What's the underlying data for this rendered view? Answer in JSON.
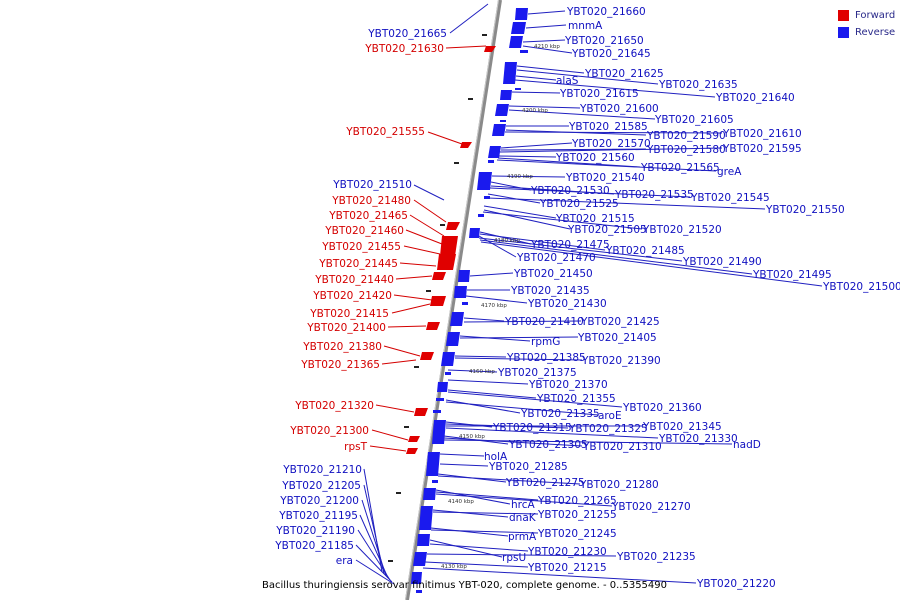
{
  "caption": "Bacillus thuringiensis serovar finitimus YBT-020, complete genome. - 0..5355490",
  "legend": [
    {
      "label": "Forward",
      "color": "#e00000"
    },
    {
      "label": "Reverse",
      "color": "#1a1aee"
    }
  ],
  "colors": {
    "forward": "#e00000",
    "reverse": "#1a1aee",
    "backbone": "#8a8a8a"
  },
  "ticks": [
    "4210 kbp",
    "4200 kbp",
    "4190 kbp",
    "4180 kbp",
    "4170 kbp",
    "4160 kbp",
    "4150 kbp",
    "4140 kbp",
    "4130 kbp"
  ],
  "forward_labels": [
    "YBT020_21630",
    "YBT020_21555",
    "YBT020_21480",
    "YBT020_21465",
    "YBT020_21460",
    "YBT020_21455",
    "YBT020_21445",
    "YBT020_21440",
    "YBT020_21420",
    "YBT020_21415",
    "YBT020_21400",
    "YBT020_21380",
    "YBT020_21365",
    "YBT020_21320",
    "YBT020_21300",
    "rpsT"
  ],
  "reverse_left_labels": [
    "YBT020_21665",
    "YBT020_21510",
    "YBT020_21210",
    "YBT020_21205",
    "YBT020_21200",
    "YBT020_21195",
    "YBT020_21190",
    "YBT020_21185",
    "era"
  ],
  "reverse_right_labels": [
    "YBT020_21660",
    "mnmA",
    "YBT020_21650",
    "YBT020_21645",
    "YBT020_21625",
    "YBT020_21635",
    "alaS",
    "YBT020_21640",
    "YBT020_21615",
    "YBT020_21600",
    "YBT020_21605",
    "YBT020_21585",
    "YBT020_21590",
    "YBT020_21610",
    "YBT020_21570",
    "YBT020_21580",
    "YBT020_21595",
    "YBT020_21560",
    "YBT020_21565",
    "greA",
    "YBT020_21540",
    "YBT020_21530",
    "YBT020_21535",
    "YBT020_21545",
    "YBT020_21525",
    "YBT020_21550",
    "YBT020_21515",
    "YBT020_21505",
    "YBT020_21520",
    "YBT020_21475",
    "YBT020_21485",
    "YBT020_21470",
    "YBT020_21490",
    "YBT020_21450",
    "YBT020_21495",
    "YBT020_21500",
    "YBT020_21435",
    "YBT020_21430",
    "YBT020_21410",
    "YBT020_21425",
    "rpmG",
    "YBT020_21405",
    "YBT020_21385",
    "YBT020_21390",
    "YBT020_21375",
    "YBT020_21370",
    "YBT020_21355",
    "YBT020_21360",
    "YBT020_21335",
    "aroE",
    "YBT020_21315",
    "YBT020_21325",
    "YBT020_21345",
    "YBT020_21330",
    "YBT020_21305",
    "YBT020_21310",
    "nadD",
    "holA",
    "YBT020_21285",
    "YBT020_21275",
    "YBT020_21280",
    "hrcA",
    "YBT020_21265",
    "YBT020_21270",
    "dnaK",
    "YBT020_21255",
    "prmA",
    "YBT020_21245",
    "rpsU",
    "YBT020_21230",
    "YBT020_21235",
    "YBT020_21215",
    "YBT020_21220"
  ]
}
